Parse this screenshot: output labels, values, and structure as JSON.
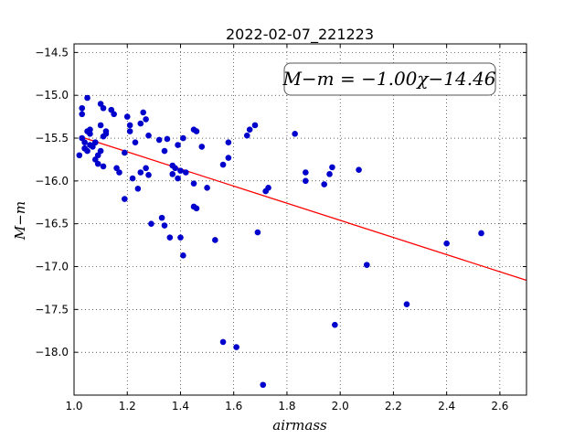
{
  "chart_data": {
    "type": "scatter",
    "title": "2022-02-07_221223",
    "xlabel": "airmass",
    "ylabel": "M−m",
    "xlim": [
      1.0,
      2.7
    ],
    "ylim": [
      -18.5,
      -14.4
    ],
    "y_inverted": true,
    "grid": true,
    "x_ticks": [
      1.0,
      1.2,
      1.4,
      1.6,
      1.8,
      2.0,
      2.2,
      2.4,
      2.6
    ],
    "x_tick_labels": [
      "1.0",
      "1.2",
      "1.4",
      "1.6",
      "1.8",
      "2.0",
      "2.2",
      "2.4",
      "2.6"
    ],
    "y_ticks": [
      -14.5,
      -15.0,
      -15.5,
      -16.0,
      -16.5,
      -17.0,
      -17.5,
      -18.0
    ],
    "y_tick_labels": [
      "−14.5",
      "−15.0",
      "−15.5",
      "−16.0",
      "−16.5",
      "−17.0",
      "−17.5",
      "−18.0"
    ],
    "annotation": "M−m = −1.00χ−14.46",
    "fit": {
      "slope": -1.0,
      "intercept": -14.46,
      "color": "#ff0000"
    },
    "point_color": "#0000cc",
    "x": [
      1.02,
      1.03,
      1.03,
      1.04,
      1.05,
      1.05,
      1.06,
      1.06,
      1.04,
      1.05,
      1.07,
      1.08,
      1.08,
      1.09,
      1.1,
      1.1,
      1.1,
      1.11,
      1.11,
      1.12,
      1.12,
      1.14,
      1.15,
      1.16,
      1.17,
      1.19,
      1.19,
      1.2,
      1.21,
      1.21,
      1.22,
      1.23,
      1.24,
      1.25,
      1.25,
      1.26,
      1.27,
      1.27,
      1.28,
      1.28,
      1.29,
      1.32,
      1.33,
      1.34,
      1.35,
      1.34,
      1.36,
      1.37,
      1.37,
      1.38,
      1.39,
      1.39,
      1.4,
      1.41,
      1.4,
      1.41,
      1.42,
      1.45,
      1.45,
      1.46,
      1.46,
      1.45,
      1.48,
      1.5,
      1.53,
      1.56,
      1.56,
      1.58,
      1.58,
      1.61,
      1.65,
      1.66,
      1.68,
      1.69,
      1.71,
      1.72,
      1.73,
      1.83,
      1.87,
      1.87,
      1.94,
      1.96,
      1.97,
      1.98,
      2.07,
      2.1,
      2.25,
      2.4,
      2.53,
      1.03,
      1.04,
      1.06,
      1.08,
      1.09,
      1.11
    ],
    "y": [
      -15.7,
      -15.15,
      -15.22,
      -15.62,
      -15.03,
      -15.42,
      -15.4,
      -15.58,
      -15.55,
      -15.65,
      -15.6,
      -15.55,
      -15.75,
      -15.8,
      -15.65,
      -15.35,
      -15.1,
      -15.15,
      -15.83,
      -15.42,
      -15.45,
      -15.17,
      -15.22,
      -15.85,
      -15.9,
      -16.21,
      -15.67,
      -15.25,
      -15.35,
      -15.42,
      -15.97,
      -15.55,
      -16.09,
      -15.9,
      -15.33,
      -15.2,
      -15.28,
      -15.85,
      -15.93,
      -15.47,
      -16.5,
      -15.52,
      -16.43,
      -16.52,
      -15.51,
      -15.65,
      -16.66,
      -15.82,
      -15.92,
      -15.85,
      -15.58,
      -15.97,
      -15.88,
      -16.87,
      -16.66,
      -15.5,
      -15.9,
      -15.4,
      -16.03,
      -16.32,
      -15.42,
      -16.3,
      -15.6,
      -16.08,
      -16.69,
      -15.81,
      -17.88,
      -15.55,
      -15.73,
      -17.94,
      -15.47,
      -15.4,
      -15.35,
      -16.6,
      -18.38,
      -16.12,
      -16.08,
      -15.45,
      -16.0,
      -15.9,
      -16.04,
      -15.92,
      -15.84,
      -17.68,
      -15.87,
      -16.98,
      -17.44,
      -16.73,
      -16.61,
      -15.5,
      -15.62,
      -15.45,
      -15.55,
      -15.7,
      -15.48
    ]
  }
}
